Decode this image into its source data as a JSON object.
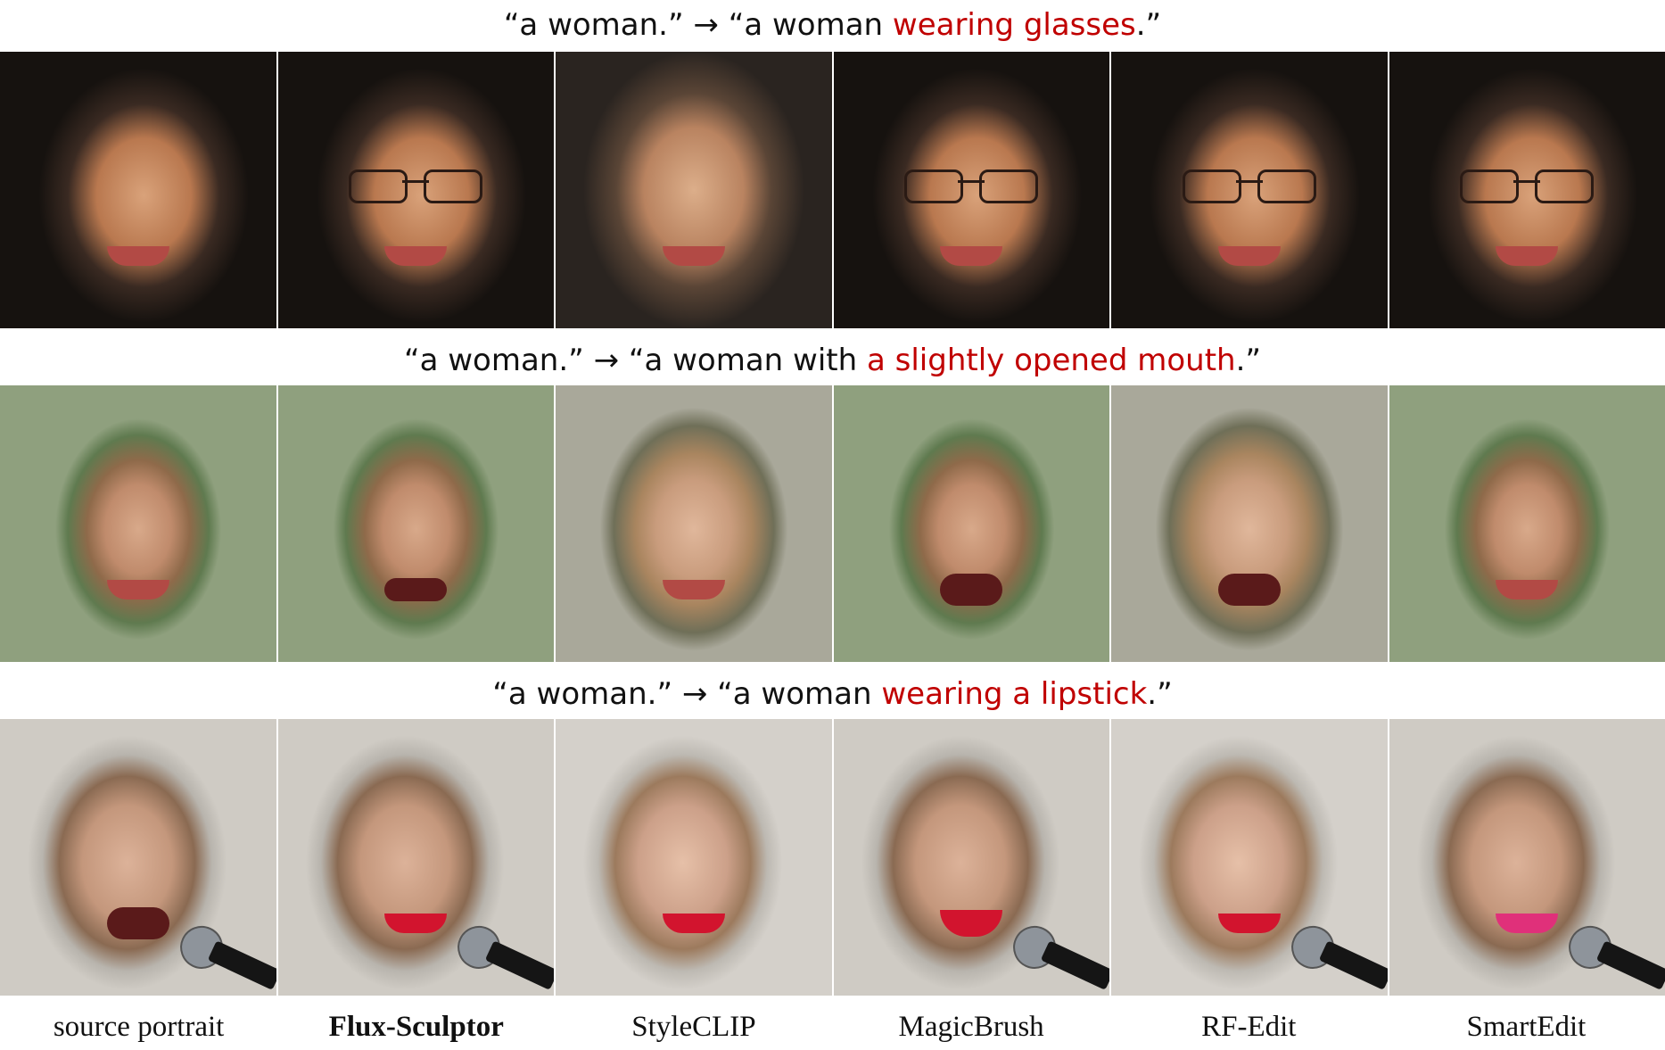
{
  "captions": [
    {
      "prefix": "“a woman.” → “a woman ",
      "highlight": "wearing glasses",
      "suffix": ".”"
    },
    {
      "prefix": "“a woman.” → “a woman with ",
      "highlight": "a slightly opened mouth",
      "suffix": ".”"
    },
    {
      "prefix": "“a woman.” → “a woman ",
      "highlight": "wearing a lipstick",
      "suffix": ".”"
    }
  ],
  "column_labels": [
    "source portrait",
    "Flux-Sculptor",
    "StyleCLIP",
    "MagicBrush",
    "RF-Edit",
    "SmartEdit"
  ],
  "colors": {
    "highlight": "#c00000",
    "text": "#111111"
  }
}
